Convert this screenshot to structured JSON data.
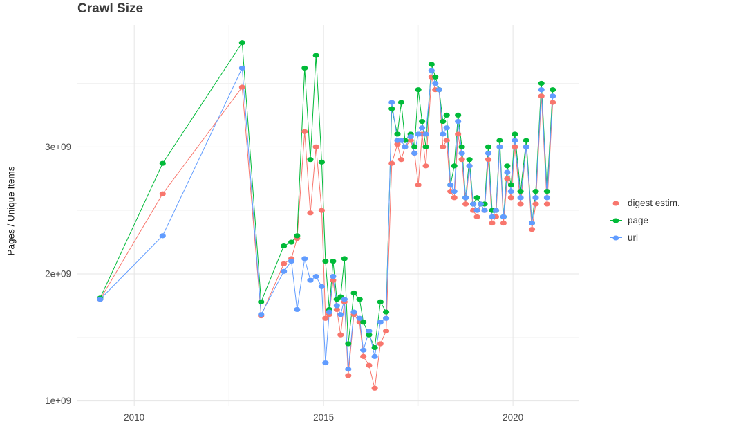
{
  "title": "Crawl Size",
  "ylabel": "Pages / Unique Items",
  "legend": {
    "items": [
      {
        "label": "digest estim.",
        "color": "#F8766D"
      },
      {
        "label": "page",
        "color": "#00BA38"
      },
      {
        "label": "url",
        "color": "#619CFF"
      }
    ]
  },
  "chart_data": {
    "type": "scatter",
    "title": "Crawl Size",
    "xlabel": "",
    "ylabel": "Pages / Unique Items",
    "unit": "pages (values in units of 1e+09)",
    "grid": true,
    "legend_position": "right",
    "xlim": [
      2008.5,
      2021.75
    ],
    "ylim": [
      0.96,
      3.96
    ],
    "x_ticks": [
      {
        "value": 2010,
        "label": "2010"
      },
      {
        "value": 2015,
        "label": "2015"
      },
      {
        "value": 2020,
        "label": "2020"
      }
    ],
    "x_minor": [
      2012.5,
      2017.5
    ],
    "y_ticks": [
      {
        "value": 1,
        "label": "1e+09"
      },
      {
        "value": 2,
        "label": "2e+09"
      },
      {
        "value": 3,
        "label": "3e+09"
      }
    ],
    "y_minor": [
      1.5,
      2.5,
      3.5
    ],
    "x": [
      2009.1,
      2010.75,
      2012.85,
      2013.35,
      2013.95,
      2014.15,
      2014.3,
      2014.5,
      2014.65,
      2014.8,
      2014.95,
      2015.05,
      2015.15,
      2015.25,
      2015.35,
      2015.45,
      2015.55,
      2015.65,
      2015.8,
      2015.95,
      2016.05,
      2016.2,
      2016.35,
      2016.5,
      2016.65,
      2016.8,
      2016.95,
      2017.05,
      2017.15,
      2017.3,
      2017.4,
      2017.5,
      2017.6,
      2017.7,
      2017.85,
      2017.95,
      2018.05,
      2018.15,
      2018.25,
      2018.35,
      2018.45,
      2018.55,
      2018.65,
      2018.75,
      2018.85,
      2018.95,
      2019.05,
      2019.15,
      2019.25,
      2019.35,
      2019.45,
      2019.55,
      2019.65,
      2019.75,
      2019.85,
      2019.95,
      2020.05,
      2020.2,
      2020.35,
      2020.5,
      2020.6,
      2020.75,
      2020.9,
      2021.05
    ],
    "series": [
      {
        "name": "digest estim.",
        "color": "#F8766D",
        "values": [
          1.8,
          2.63,
          3.47,
          1.67,
          2.08,
          2.12,
          2.28,
          3.12,
          2.48,
          3.0,
          2.5,
          1.65,
          1.68,
          1.95,
          1.72,
          1.52,
          1.78,
          1.2,
          1.68,
          1.62,
          1.35,
          1.28,
          1.1,
          1.45,
          1.55,
          2.87,
          3.02,
          2.9,
          3.0,
          3.05,
          2.95,
          2.7,
          3.1,
          2.85,
          3.55,
          3.45,
          3.45,
          3.0,
          3.05,
          2.65,
          2.6,
          3.1,
          2.9,
          2.55,
          2.85,
          2.5,
          2.45,
          2.55,
          2.5,
          2.9,
          2.4,
          2.45,
          3.0,
          2.4,
          2.75,
          2.6,
          3.0,
          2.55,
          3.0,
          2.35,
          2.55,
          3.4,
          2.55,
          3.35
        ]
      },
      {
        "name": "page",
        "color": "#00BA38",
        "values": [
          1.81,
          2.87,
          3.82,
          1.78,
          2.22,
          2.25,
          2.3,
          3.62,
          2.9,
          3.72,
          2.88,
          2.1,
          1.72,
          2.1,
          1.8,
          1.82,
          2.12,
          1.45,
          1.85,
          1.8,
          1.62,
          1.52,
          1.42,
          1.78,
          1.7,
          3.3,
          3.1,
          3.35,
          3.05,
          3.1,
          3.0,
          3.45,
          3.2,
          3.0,
          3.65,
          3.55,
          3.45,
          3.2,
          3.25,
          2.7,
          2.85,
          3.25,
          3.0,
          2.6,
          2.9,
          2.55,
          2.6,
          2.55,
          2.55,
          3.0,
          2.5,
          2.5,
          3.05,
          2.45,
          2.85,
          2.7,
          3.1,
          2.65,
          3.05,
          2.4,
          2.65,
          3.5,
          2.65,
          3.45
        ]
      },
      {
        "name": "url",
        "color": "#619CFF",
        "values": [
          1.8,
          2.3,
          3.62,
          1.68,
          2.02,
          2.1,
          1.72,
          2.12,
          1.95,
          1.98,
          1.9,
          1.3,
          1.7,
          1.98,
          1.75,
          1.68,
          1.8,
          1.25,
          1.7,
          1.65,
          1.4,
          1.55,
          1.35,
          1.62,
          1.65,
          3.35,
          3.05,
          3.05,
          3.0,
          3.08,
          2.95,
          3.1,
          3.15,
          3.1,
          3.6,
          3.5,
          3.45,
          3.1,
          3.15,
          2.7,
          2.65,
          3.2,
          2.95,
          2.6,
          2.85,
          2.55,
          2.5,
          2.55,
          2.5,
          2.95,
          2.45,
          2.5,
          3.0,
          2.45,
          2.8,
          2.65,
          3.05,
          2.6,
          3.0,
          2.4,
          2.6,
          3.45,
          2.6,
          3.4
        ]
      }
    ]
  }
}
